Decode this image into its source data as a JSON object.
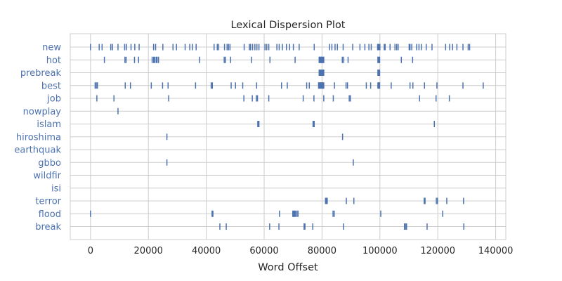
{
  "chart_data": {
    "type": "scatter",
    "title": "Lexical Dispersion Plot",
    "xlabel": "Word Offset",
    "ylabel": "",
    "xlim": [
      -7000,
      143500
    ],
    "x_ticks": [
      0,
      20000,
      40000,
      60000,
      80000,
      100000,
      120000,
      140000
    ],
    "x_tick_labels": [
      "0",
      "20000",
      "40000",
      "60000",
      "80000",
      "100000",
      "120000",
      "140000"
    ],
    "grid": true,
    "marker": "|",
    "color": "#4c72b0",
    "words": [
      "new",
      "hot",
      "prebreak",
      "best",
      "job",
      "nowplay",
      "islam",
      "hiroshima",
      "earthquak",
      "gbbo",
      "wildfir",
      "isi",
      "terror",
      "flood",
      "break"
    ],
    "series": [
      {
        "word": "new",
        "x": [
          0,
          3000,
          4000,
          7000,
          7600,
          9500,
          11800,
          12400,
          14000,
          15300,
          16800,
          21800,
          22500,
          25000,
          28500,
          29700,
          32700,
          34300,
          35200,
          36500,
          42700,
          43800,
          44300,
          46300,
          47200,
          47700,
          48200,
          53100,
          54900,
          55300,
          56000,
          56800,
          57500,
          58200,
          60300,
          60900,
          61600,
          64400,
          65200,
          66300,
          67700,
          68800,
          70100,
          72100,
          77300,
          82600,
          83400,
          84500,
          85300,
          87300,
          90600,
          93100,
          94800,
          96200,
          97000,
          99200,
          99400,
          99700,
          100000,
          101500,
          101800,
          103500,
          105200,
          105800,
          106300,
          110100,
          110400,
          111000,
          112700,
          113500,
          114300,
          116000,
          118000,
          122700,
          124100,
          125100,
          126600,
          128700,
          130500,
          131000
        ]
      },
      {
        "word": "hot",
        "x": [
          4800,
          11900,
          12300,
          15200,
          16600,
          21300,
          21800,
          22200,
          22700,
          23000,
          23500,
          37700,
          46200,
          46600,
          48400,
          55600,
          62000,
          70700,
          79000,
          79200,
          79400,
          79600,
          79800,
          80000,
          80200,
          80400,
          80600,
          87000,
          87500,
          89000,
          99300,
          99500,
          99700,
          99900,
          107400,
          111300
        ]
      },
      {
        "word": "prebreak",
        "x": [
          79000,
          79200,
          79400,
          79600,
          79800,
          80000,
          80200,
          80400,
          80600,
          99300,
          99500,
          99700,
          99900
        ]
      },
      {
        "word": "best",
        "x": [
          1600,
          2000,
          2400,
          12000,
          13800,
          21000,
          24900,
          26800,
          36300,
          41700,
          42100,
          48600,
          50100,
          52600,
          57400,
          66000,
          68000,
          74700,
          75600,
          78800,
          79000,
          79200,
          79400,
          79600,
          79800,
          80000,
          80200,
          80400,
          80600,
          84300,
          88300,
          88800,
          95300,
          96800,
          99300,
          99500,
          99700,
          99900,
          103900,
          110400,
          111400,
          115400,
          119700,
          128700,
          135700
        ]
      },
      {
        "word": "job",
        "x": [
          2200,
          8100,
          27000,
          53000,
          55900,
          57300,
          57700,
          61600,
          73500,
          77200,
          80600,
          83900,
          89400,
          89800,
          113700,
          119400,
          124000
        ]
      },
      {
        "word": "nowplay",
        "x": [
          9500
        ]
      },
      {
        "word": "islam",
        "x": [
          57800,
          58000,
          58200,
          76900,
          77100,
          77300,
          118800
        ]
      },
      {
        "word": "hiroshima",
        "x": [
          26400,
          87100
        ]
      },
      {
        "word": "earthquak",
        "x": []
      },
      {
        "word": "gbbo",
        "x": [
          26400,
          90800
        ]
      },
      {
        "word": "wildfir",
        "x": []
      },
      {
        "word": "isi",
        "x": []
      },
      {
        "word": "terror",
        "x": [
          81200,
          81500,
          81800,
          88400,
          91000,
          115300,
          115600,
          119500,
          119900,
          123100,
          128900
        ]
      },
      {
        "word": "flood",
        "x": [
          0,
          42000,
          42300,
          65300,
          69900,
          70200,
          70500,
          70800,
          71300,
          71700,
          83800,
          84200,
          100300,
          121700
        ]
      },
      {
        "word": "break",
        "x": [
          44700,
          46900,
          61900,
          65100,
          73800,
          74100,
          76800,
          87400,
          108500,
          108800,
          109200,
          116300,
          129000
        ]
      }
    ]
  }
}
